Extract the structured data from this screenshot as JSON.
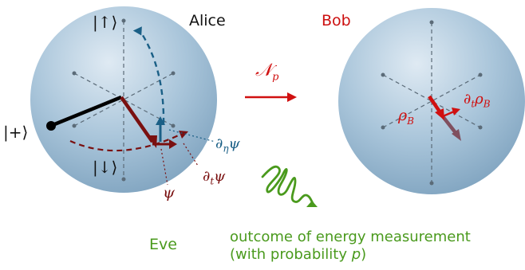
{
  "colors": {
    "sphere_light": "#dfeaf3",
    "sphere_mid": "#a9c5da",
    "sphere_dark": "#7fa3bf",
    "axis": "#5b6b78",
    "black_vector": "#000000",
    "psi_vector": "#7a1010",
    "eta_vector": "#1a5f86",
    "bob_red": "#d01010",
    "bob_shadow": "#80505f",
    "eve_green": "#4a9a1d"
  },
  "alice": {
    "name": "Alice",
    "ket_up": "|↑⟩",
    "ket_down": "|↓⟩",
    "ket_plus": "|+⟩",
    "psi": "ψ",
    "dt_psi": "∂",
    "dt_psi_sub": "t",
    "dt_psi_tail": "ψ",
    "deta_psi": "∂",
    "deta_psi_sub": "η",
    "deta_psi_tail": "ψ"
  },
  "channel": {
    "symbol": "𝒩",
    "subscript": "p"
  },
  "bob": {
    "name": "Bob",
    "rho": "ρ",
    "rho_sub": "B",
    "dt_rho": "∂",
    "dt_rho_sub": "t",
    "dt_rho_mid": "ρ",
    "dt_rho_sub2": "B"
  },
  "eve": {
    "name": "Eve",
    "outcome_line1": "outcome of energy measurement",
    "outcome_line2_prefix": "(with probability ",
    "outcome_line2_var": "p",
    "outcome_line2_suffix": ")"
  }
}
